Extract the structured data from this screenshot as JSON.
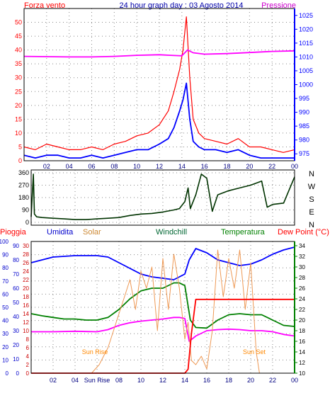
{
  "chart_data": [
    {
      "type": "line",
      "title": "24 hour graph day : 03 Agosto 2014",
      "left_label": "Forza vento",
      "right_label": "Pressione",
      "x_ticks": [
        "02",
        "04",
        "06",
        "08",
        "10",
        "12",
        "14",
        "16",
        "18",
        "20",
        "22",
        "00"
      ],
      "x_range": [
        0,
        24
      ],
      "y_left": {
        "range": [
          0,
          55
        ],
        "ticks": [
          0,
          5,
          10,
          15,
          20,
          25,
          30,
          35,
          40,
          45,
          50
        ]
      },
      "y_right": {
        "range": [
          972.5,
          1027.5
        ],
        "ticks": [
          975,
          980,
          985,
          990,
          995,
          1000,
          1005,
          1010,
          1015,
          1020,
          1025
        ]
      },
      "grid": true,
      "series": [
        {
          "name": "Forza vento",
          "axis": "left",
          "color": "#ff0000",
          "x": [
            0,
            1,
            2,
            3,
            4,
            5,
            6,
            7,
            8,
            9,
            10,
            11,
            12,
            12.8,
            13.3,
            13.8,
            14.1,
            14.4,
            14.7,
            15,
            15.5,
            16,
            17,
            18,
            19,
            20,
            21,
            22,
            23,
            24
          ],
          "y": [
            5,
            4,
            6,
            5,
            4,
            4,
            5,
            4,
            6,
            7,
            9,
            10,
            13,
            18,
            25,
            33,
            40,
            52,
            30,
            15,
            10,
            8,
            7,
            6,
            8,
            5,
            5,
            4,
            3,
            4
          ]
        },
        {
          "name": "",
          "axis": "left",
          "color": "#0000ff",
          "x": [
            0,
            1,
            2,
            3,
            4,
            5,
            6,
            7,
            8,
            9,
            10,
            11,
            12,
            12.8,
            13.3,
            13.8,
            14.1,
            14.4,
            14.7,
            15,
            15.5,
            16,
            17,
            18,
            19,
            20,
            21,
            22,
            23,
            24
          ],
          "y": [
            2,
            1,
            2,
            2,
            1,
            1,
            2,
            1,
            2,
            3,
            4,
            4,
            6,
            8,
            12,
            18,
            22,
            28,
            15,
            7,
            5,
            4,
            4,
            3,
            4,
            2,
            1,
            1,
            1,
            1
          ]
        },
        {
          "name": "Pressione",
          "axis": "right",
          "color": "#ff00ff",
          "x": [
            0,
            2,
            4,
            6,
            8,
            10,
            12,
            13,
            14,
            14.5,
            15,
            16,
            18,
            20,
            22,
            24
          ],
          "y": [
            1010.2,
            1010.1,
            1010,
            1010,
            1010.2,
            1010.6,
            1010.8,
            1010.6,
            1010.4,
            1012.5,
            1011.5,
            1011,
            1011.2,
            1011.6,
            1012,
            1012.2
          ]
        }
      ]
    },
    {
      "type": "line",
      "right_labels": [
        "N",
        "W",
        "S",
        "E",
        "N"
      ],
      "y_ticks": [
        0,
        90,
        180,
        270,
        360
      ],
      "y_range": [
        0,
        360
      ],
      "x_range": [
        0,
        24
      ],
      "grid": true,
      "series": [
        {
          "name": "",
          "color": "#003300",
          "x": [
            0,
            0.2,
            0.3,
            0.5,
            1,
            2,
            3,
            4,
            5,
            6,
            7,
            8,
            9,
            10,
            11,
            12,
            13,
            13.5,
            14,
            14.3,
            14.5,
            15,
            15.5,
            16,
            16.5,
            17,
            18,
            19,
            20,
            21,
            21.5,
            22,
            23,
            24
          ],
          "y": [
            40,
            350,
            60,
            40,
            35,
            30,
            25,
            20,
            20,
            25,
            30,
            35,
            50,
            60,
            65,
            75,
            90,
            100,
            150,
            250,
            100,
            200,
            350,
            320,
            80,
            200,
            230,
            250,
            270,
            300,
            110,
            130,
            140,
            330
          ]
        }
      ]
    },
    {
      "type": "line",
      "labels": {
        "pioggia": "Pioggia",
        "umidita": "Umidita",
        "solar": "Solar",
        "windchill": "Windchill",
        "temperatura": "Temperatura",
        "dewpoint": "Dew Point (°C)"
      },
      "annotations": [
        "Sun Rise",
        "Sun Set"
      ],
      "x_ticks": [
        "02",
        "04",
        "Sun Rise",
        "08",
        "10",
        "12",
        "14",
        "16",
        "18",
        "20",
        "22",
        "00"
      ],
      "x_range": [
        0,
        24
      ],
      "axes": {
        "pioggia": {
          "range": [
            0,
            100
          ],
          "ticks": [
            0,
            10,
            20,
            30,
            40,
            50,
            60,
            70,
            80,
            90,
            100
          ]
        },
        "umidita": {
          "range": [
            0,
            93
          ],
          "ticks": [
            0,
            10,
            20,
            30,
            40,
            50,
            60,
            70,
            80,
            90
          ]
        },
        "solar": {
          "range": [
            0,
            31
          ],
          "ticks": [
            0,
            2,
            4,
            6,
            8,
            10,
            12,
            14,
            16,
            18,
            20,
            22,
            24,
            26,
            28,
            30
          ]
        },
        "temp": {
          "range": [
            10,
            34.8
          ],
          "ticks": [
            10,
            12,
            14,
            16,
            18,
            20,
            22,
            24,
            26,
            28,
            30,
            32,
            34
          ]
        }
      },
      "grid": true,
      "series": [
        {
          "name": "Umidita",
          "axis": "umidita",
          "color": "#0000ff",
          "x": [
            0,
            1,
            2,
            4,
            6,
            7,
            8,
            9,
            10,
            11,
            12,
            13,
            13.5,
            14,
            14.4,
            15,
            16,
            17,
            18,
            19,
            20,
            21,
            22,
            23,
            24
          ],
          "y": [
            78,
            80,
            82,
            83,
            83,
            82,
            78,
            74,
            70,
            68,
            67,
            66,
            68,
            70,
            80,
            88,
            85,
            80,
            78,
            76,
            77,
            80,
            84,
            87,
            89
          ]
        },
        {
          "name": "Temperatura",
          "axis": "temp",
          "color": "#008000",
          "x": [
            0,
            1,
            2,
            3,
            4,
            5,
            6,
            7,
            8,
            9,
            10,
            11,
            12,
            13,
            13.5,
            14,
            14.5,
            15,
            16,
            17,
            18,
            19,
            20,
            21,
            22,
            23,
            24
          ],
          "y": [
            21.2,
            20.8,
            20.5,
            20.2,
            20.2,
            20,
            20,
            20.5,
            22,
            24,
            25.5,
            26,
            26,
            27,
            27,
            26.5,
            20,
            18.6,
            18.5,
            20,
            21,
            21.2,
            21,
            21,
            20,
            19,
            18.8
          ]
        },
        {
          "name": "Dew Point (°C)",
          "axis": "temp",
          "color": "#ff00ff",
          "x": [
            0,
            2,
            4,
            6,
            7,
            8,
            9,
            10,
            11,
            12,
            13,
            13.5,
            14,
            14.4,
            15,
            16,
            17,
            18,
            19,
            20,
            21,
            22,
            23,
            24
          ],
          "y": [
            17.8,
            17.8,
            17.9,
            17.8,
            18.2,
            19,
            19.5,
            19.8,
            20,
            20.2,
            20.5,
            20.5,
            20.3,
            16,
            17,
            18,
            18.2,
            18.3,
            18.2,
            18,
            18,
            17.8,
            17.3,
            17
          ]
        },
        {
          "name": "Solar",
          "axis": "solar",
          "color": "#ee9955",
          "x": [
            0,
            5.5,
            6.2,
            7,
            7.5,
            8,
            8.5,
            9,
            9.5,
            10,
            10.5,
            11,
            11.5,
            12,
            12.5,
            13,
            13.5,
            14,
            14.3,
            14.6,
            15,
            15.5,
            16,
            16.5,
            17,
            17.5,
            18,
            18.5,
            19,
            19.5,
            20,
            20.5,
            20.8,
            24
          ],
          "y": [
            0,
            0,
            2,
            6,
            10,
            14,
            18,
            22,
            15,
            24,
            20,
            25,
            10,
            27,
            15,
            28,
            20,
            8,
            12,
            3,
            2,
            4,
            1,
            10,
            29,
            18,
            27,
            20,
            29,
            15,
            26,
            5,
            0,
            0
          ]
        },
        {
          "name": "Pioggia",
          "axis": "pioggia",
          "color": "#ff0000",
          "x": [
            0,
            14,
            14.3,
            14.6,
            15,
            16,
            18,
            20,
            22,
            24
          ],
          "y": [
            0,
            0,
            3,
            30,
            56,
            56,
            56,
            56,
            56,
            56
          ]
        }
      ]
    }
  ]
}
